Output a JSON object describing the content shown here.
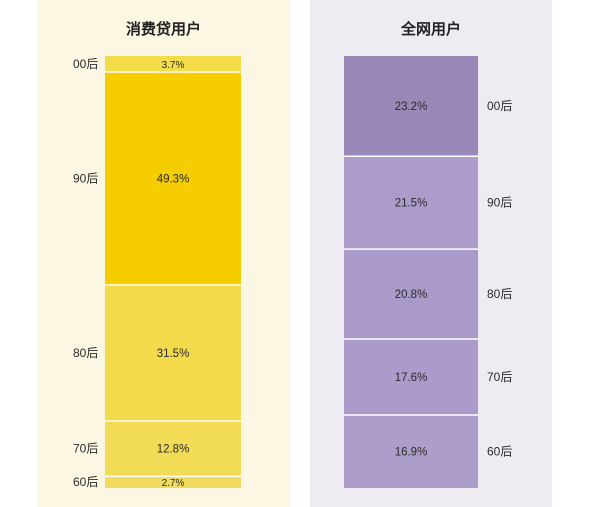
{
  "chart_data": [
    {
      "type": "stacked-bar",
      "title": "消费贷用户",
      "unit": "%",
      "categories": [
        "00后",
        "90后",
        "80后",
        "70后",
        "60后"
      ],
      "values": [
        3.7,
        49.3,
        31.5,
        12.8,
        2.7
      ],
      "value_labels": [
        "3.7%",
        "49.3%",
        "31.5%",
        "12.8%",
        "2.7%"
      ],
      "colors": [
        "#f4db4a",
        "#f5cd00",
        "#f3da4b",
        "#f3dc55",
        "#f1db5e"
      ],
      "label_side": "left"
    },
    {
      "type": "stacked-bar",
      "title": "全网用户",
      "unit": "%",
      "categories": [
        "00后",
        "90后",
        "80后",
        "70后",
        "60后"
      ],
      "values": [
        23.2,
        21.5,
        20.8,
        17.6,
        16.9
      ],
      "value_labels": [
        "23.2%",
        "21.5%",
        "20.8%",
        "17.6%",
        "16.9%"
      ],
      "colors": [
        "#9a88b8",
        "#ac9bcb",
        "#aa9ac9",
        "#ab9aca",
        "#ad9dca"
      ],
      "label_side": "right"
    }
  ]
}
